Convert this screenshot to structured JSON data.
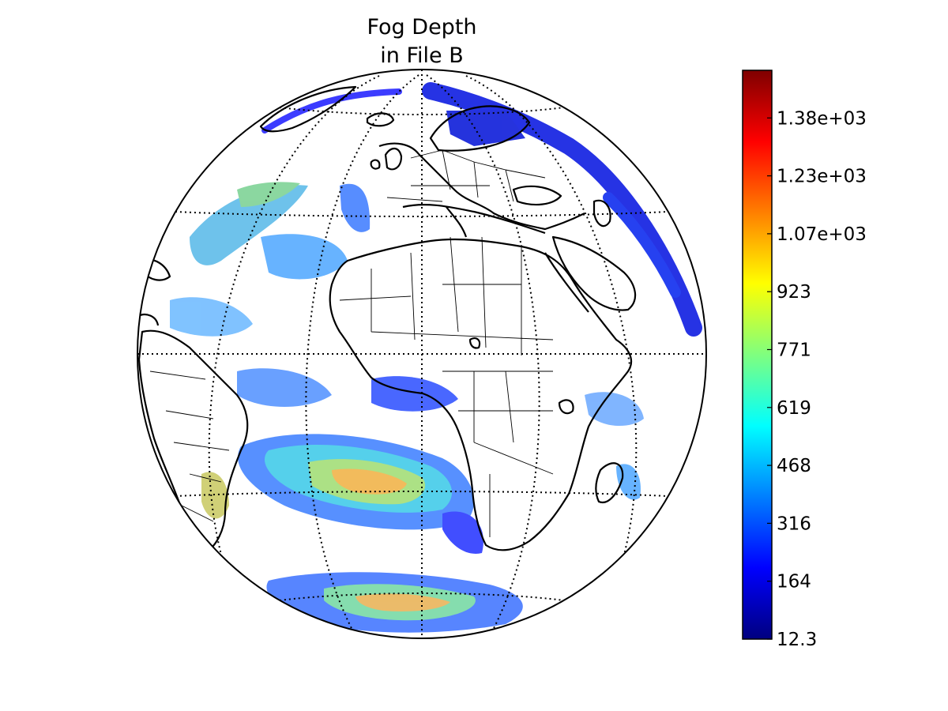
{
  "title": {
    "line1": "Fog Depth",
    "line2": "in File B"
  },
  "colorbar": {
    "colormap": "jet",
    "tick_labels": [
      "12.3",
      "164",
      "316",
      "468",
      "619",
      "771",
      "923",
      "1.07e+03",
      "1.23e+03",
      "1.38e+03"
    ],
    "colors": [
      "#00007f",
      "#0000ff",
      "#007fff",
      "#00ffff",
      "#7fff7f",
      "#ffff00",
      "#ff7f00",
      "#ff0000",
      "#7f0000"
    ]
  },
  "map": {
    "projection": "orthographic",
    "center_lon": 0,
    "center_lat": 0,
    "features": [
      "coastlines",
      "country-borders",
      "graticule"
    ]
  }
}
